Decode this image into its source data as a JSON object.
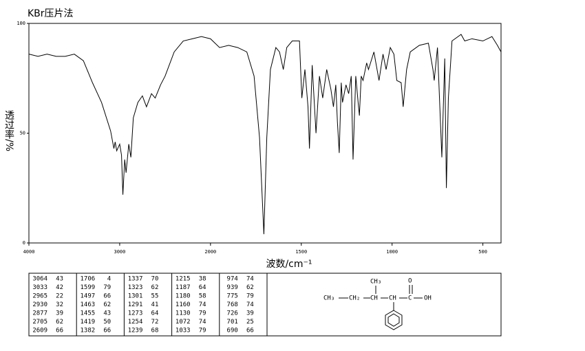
{
  "chart_data": {
    "type": "line",
    "title": "KBr压片法",
    "x_label": "波数/cm⁻¹",
    "y_label": "透过率/%",
    "color": "#000000",
    "x_scale_change": {
      "at": 2000,
      "factor": 2
    },
    "xlim": [
      4000,
      400
    ],
    "xticks": [
      4000,
      3000,
      2000,
      1500,
      1000,
      500
    ],
    "ylim": [
      0,
      100
    ],
    "yticks": [
      0,
      50,
      100
    ],
    "x": [
      4000,
      3900,
      3800,
      3700,
      3600,
      3500,
      3400,
      3300,
      3200,
      3100,
      3064,
      3050,
      3033,
      3000,
      2980,
      2965,
      2945,
      2930,
      2900,
      2877,
      2850,
      2800,
      2750,
      2705,
      2650,
      2609,
      2550,
      2500,
      2400,
      2300,
      2200,
      2100,
      2000,
      1950,
      1900,
      1850,
      1800,
      1760,
      1730,
      1706,
      1690,
      1670,
      1640,
      1620,
      1599,
      1580,
      1550,
      1510,
      1497,
      1480,
      1463,
      1455,
      1440,
      1419,
      1400,
      1382,
      1360,
      1337,
      1323,
      1310,
      1301,
      1291,
      1280,
      1273,
      1254,
      1239,
      1225,
      1215,
      1200,
      1187,
      1180,
      1170,
      1160,
      1140,
      1130,
      1100,
      1072,
      1050,
      1033,
      1010,
      990,
      974,
      950,
      939,
      920,
      900,
      850,
      800,
      775,
      768,
      750,
      726,
      710,
      701,
      690,
      670,
      620,
      600,
      560,
      500,
      450,
      420,
      400
    ],
    "values": [
      86,
      85,
      86,
      85,
      85,
      86,
      83,
      73,
      64,
      51,
      43,
      46,
      42,
      45,
      40,
      22,
      38,
      32,
      45,
      39,
      57,
      64,
      67,
      62,
      68,
      66,
      72,
      76,
      87,
      92,
      93,
      94,
      93,
      89,
      90,
      89,
      87,
      76,
      48,
      4,
      48,
      79,
      89,
      87,
      79,
      89,
      92,
      92,
      66,
      79,
      62,
      43,
      81,
      50,
      76,
      66,
      79,
      70,
      62,
      72,
      55,
      41,
      73,
      64,
      72,
      68,
      76,
      38,
      76,
      64,
      58,
      76,
      74,
      82,
      79,
      87,
      74,
      86,
      79,
      89,
      86,
      74,
      73,
      62,
      79,
      87,
      90,
      91,
      79,
      74,
      89,
      39,
      84,
      25,
      66,
      92,
      95,
      92,
      93,
      92,
      94,
      90,
      87
    ]
  },
  "peak_table": {
    "columns": [
      [
        [
          3064,
          43
        ],
        [
          3033,
          42
        ],
        [
          2965,
          22
        ],
        [
          2930,
          32
        ],
        [
          2877,
          39
        ],
        [
          2705,
          62
        ],
        [
          2609,
          66
        ]
      ],
      [
        [
          1706,
          4
        ],
        [
          1599,
          79
        ],
        [
          1497,
          66
        ],
        [
          1463,
          62
        ],
        [
          1455,
          43
        ],
        [
          1419,
          50
        ],
        [
          1382,
          66
        ]
      ],
      [
        [
          1337,
          70
        ],
        [
          1323,
          62
        ],
        [
          1301,
          55
        ],
        [
          1291,
          41
        ],
        [
          1273,
          64
        ],
        [
          1254,
          72
        ],
        [
          1239,
          68
        ]
      ],
      [
        [
          1215,
          38
        ],
        [
          1187,
          64
        ],
        [
          1180,
          58
        ],
        [
          1160,
          74
        ],
        [
          1130,
          79
        ],
        [
          1072,
          74
        ],
        [
          1033,
          79
        ]
      ],
      [
        [
          974,
          74
        ],
        [
          939,
          62
        ],
        [
          775,
          79
        ],
        [
          768,
          74
        ],
        [
          726,
          39
        ],
        [
          701,
          25
        ],
        [
          690,
          66
        ]
      ]
    ]
  },
  "structure": {
    "ch3_end": "CH₃",
    "ch2": "CH₂",
    "ch_branch": "CH",
    "ch3_branch": "CH₃",
    "ch_alpha": "CH",
    "carbonyl_c": "C",
    "carbonyl_o": "O",
    "hydroxyl": "OH"
  }
}
